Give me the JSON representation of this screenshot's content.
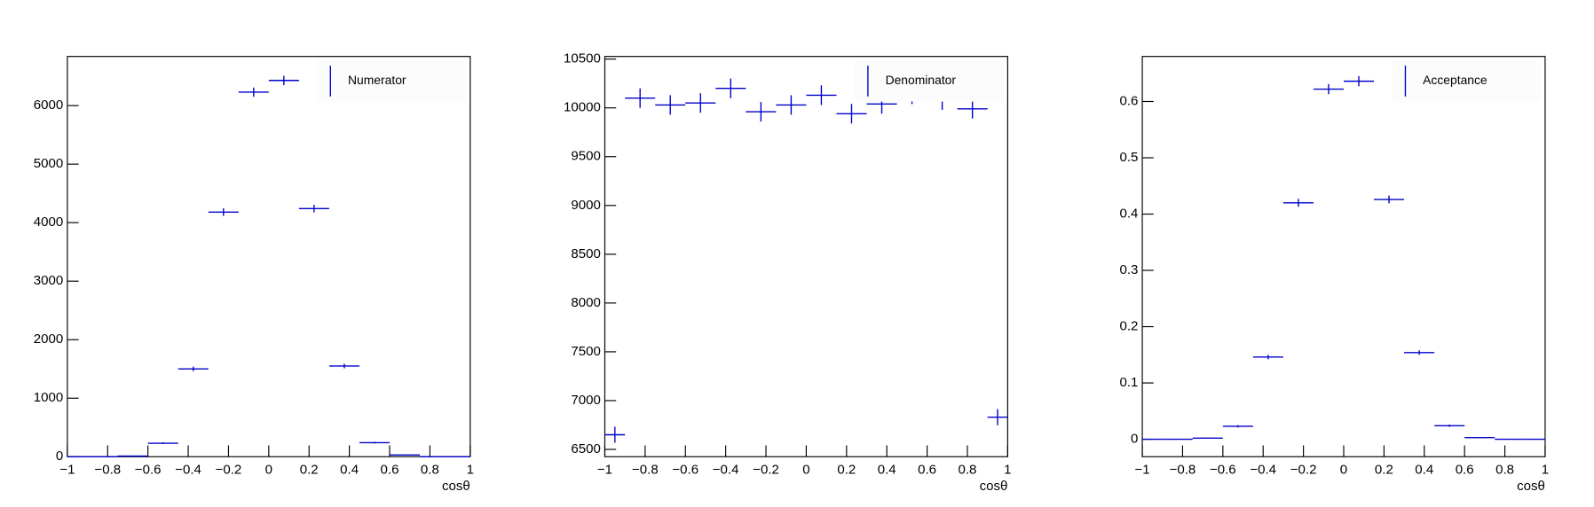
{
  "chart_data": [
    {
      "type": "histogram",
      "xlabel": "cosθ",
      "bins": [
        -1,
        -0.9,
        -0.75,
        -0.6,
        -0.45,
        -0.3,
        -0.15,
        0,
        0.15,
        0.3,
        0.45,
        0.6,
        0.75,
        0.9,
        1
      ],
      "series": [
        {
          "name": "Numerator",
          "color": "#0000cc",
          "values": [
            0,
            0,
            10,
            230,
            1500,
            4180,
            6230,
            6430,
            4240,
            1550,
            240,
            30,
            0,
            0
          ],
          "errors": [
            0,
            0,
            3,
            15,
            39,
            65,
            79,
            80,
            65,
            39,
            15,
            5,
            0,
            0
          ]
        }
      ],
      "xlim": [
        -1,
        1
      ],
      "xticks": [
        {
          "value": -1,
          "label": "−1"
        },
        {
          "value": -0.8,
          "label": "−0.8"
        },
        {
          "value": -0.6,
          "label": "−0.6"
        },
        {
          "value": -0.4,
          "label": "−0.4"
        },
        {
          "value": -0.2,
          "label": "−0.2"
        },
        0,
        0.2,
        0.4,
        0.6,
        0.8,
        1
      ],
      "ylim": [
        0,
        6840
      ],
      "yticks": [
        0,
        1000,
        2000,
        3000,
        4000,
        5000,
        6000
      ],
      "legend": "upper right"
    },
    {
      "type": "histogram",
      "xlabel": "cosθ",
      "bins": [
        -1,
        -0.9,
        -0.75,
        -0.6,
        -0.45,
        -0.3,
        -0.15,
        0,
        0.15,
        0.3,
        0.45,
        0.6,
        0.75,
        0.9,
        1
      ],
      "series": [
        {
          "name": "Denominator",
          "color": "#0000cc",
          "values": [
            6650,
            10100,
            10030,
            10050,
            10200,
            9960,
            10030,
            10130,
            9940,
            10040,
            10140,
            10080,
            9990,
            6830
          ],
          "errors": [
            82,
            100,
            100,
            100,
            101,
            100,
            100,
            101,
            100,
            100,
            101,
            100,
            100,
            83
          ]
        }
      ],
      "xlim": [
        -1,
        1
      ],
      "xticks": [
        {
          "value": -1,
          "label": "−1"
        },
        {
          "value": -0.8,
          "label": "−0.8"
        },
        {
          "value": -0.6,
          "label": "−0.6"
        },
        {
          "value": -0.4,
          "label": "−0.4"
        },
        {
          "value": -0.2,
          "label": "−0.2"
        },
        0,
        0.2,
        0.4,
        0.6,
        0.8,
        1
      ],
      "ylim": [
        6425,
        10527
      ],
      "yticks": [
        6500,
        7000,
        7500,
        8000,
        8500,
        9000,
        9500,
        10000,
        10500
      ],
      "legend": "upper right"
    },
    {
      "type": "histogram",
      "xlabel": "cosθ",
      "bins": [
        -1,
        -0.9,
        -0.75,
        -0.6,
        -0.45,
        -0.3,
        -0.15,
        0,
        0.15,
        0.3,
        0.45,
        0.6,
        0.75,
        0.9,
        1
      ],
      "series": [
        {
          "name": "Acceptance",
          "color": "#0000cc",
          "values": [
            0,
            0,
            0.002,
            0.023,
            0.146,
            0.42,
            0.622,
            0.636,
            0.426,
            0.154,
            0.024,
            0.003,
            0,
            0
          ],
          "errors": [
            0,
            0,
            0.001,
            0.002,
            0.004,
            0.007,
            0.009,
            0.009,
            0.007,
            0.004,
            0.002,
            0.001,
            0,
            0
          ]
        }
      ],
      "xlim": [
        -1,
        1
      ],
      "xticks": [
        {
          "value": -1,
          "label": "−1"
        },
        {
          "value": -0.8,
          "label": "−0.8"
        },
        {
          "value": -0.6,
          "label": "−0.6"
        },
        {
          "value": -0.4,
          "label": "−0.4"
        },
        {
          "value": -0.2,
          "label": "−0.2"
        },
        0,
        0.2,
        0.4,
        0.6,
        0.8,
        1
      ],
      "ylim": [
        -0.031,
        0.68
      ],
      "yticks": [
        0,
        0.1,
        0.2,
        0.3,
        0.4,
        0.5,
        0.6
      ],
      "legend": "upper right"
    }
  ]
}
